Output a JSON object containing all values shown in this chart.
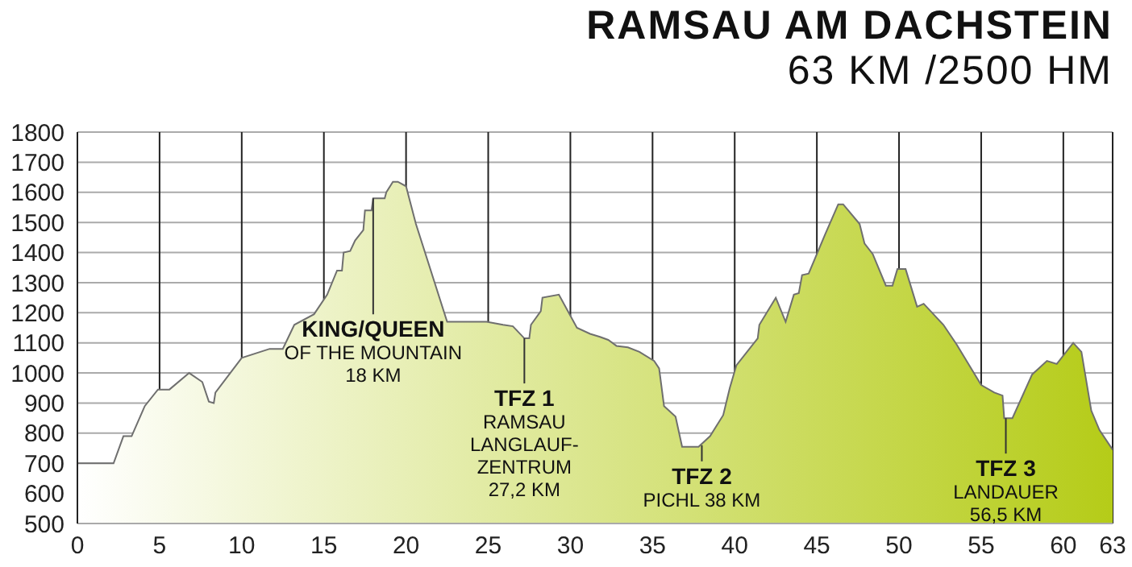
{
  "chart_data": {
    "type": "area",
    "title": "RAMSAU AM DACHSTEIN",
    "subtitle": "63 KM /2500 HM",
    "x": [
      0,
      2.2,
      2.8,
      3.3,
      4.1,
      4.9,
      5.6,
      6.8,
      7.6,
      8.0,
      8.3,
      8.4,
      10,
      11.7,
      12.5,
      13.2,
      14.4,
      15.2,
      15.8,
      16.1,
      16.2,
      16.6,
      16.9,
      17.4,
      17.5,
      17.9,
      18.0,
      18.7,
      18.8,
      19.2,
      19.5,
      20,
      20.6,
      22.5,
      24.9,
      25.9,
      26.5,
      27.2,
      27.5,
      27.6,
      28.2,
      28.3,
      29.3,
      30.4,
      31.2,
      31.8,
      32.3,
      32.8,
      33.5,
      34.2,
      35.1,
      35.4,
      35.7,
      36.4,
      36.8,
      37.8,
      38.5,
      39.3,
      39.7,
      40.1,
      41.4,
      41.5,
      42.5,
      43.1,
      43.6,
      43.9,
      44.1,
      44.5,
      45.5,
      46.3,
      46.6,
      47.6,
      47.9,
      48.4,
      49.2,
      49.6,
      49.9,
      50.4,
      51.1,
      51.5,
      52.7,
      53.5,
      55,
      55.8,
      56.3,
      56.4,
      56.9,
      58.1,
      58.5,
      59,
      59.6,
      60.6,
      61.1,
      61.7,
      62.2,
      63
    ],
    "series": [
      {
        "color": "#b5cc18",
        "values": [
          700,
          700,
          790,
          790,
          890,
          945,
          945,
          1000,
          970,
          905,
          900,
          935,
          1050,
          1080,
          1080,
          1160,
          1195,
          1260,
          1340,
          1340,
          1400,
          1405,
          1440,
          1475,
          1540,
          1540,
          1580,
          1580,
          1600,
          1635,
          1635,
          1620,
          1495,
          1170,
          1170,
          1160,
          1155,
          1115,
          1115,
          1160,
          1205,
          1250,
          1260,
          1150,
          1130,
          1120,
          1110,
          1090,
          1085,
          1070,
          1040,
          1015,
          890,
          855,
          755,
          755,
          790,
          860,
          950,
          1025,
          1115,
          1160,
          1250,
          1170,
          1260,
          1265,
          1325,
          1330,
          1460,
          1560,
          1560,
          1495,
          1430,
          1395,
          1290,
          1290,
          1345,
          1345,
          1220,
          1230,
          1160,
          1095,
          960,
          935,
          925,
          850,
          850,
          995,
          1015,
          1040,
          1030,
          1100,
          1070,
          875,
          810,
          745
        ]
      }
    ],
    "xlim": [
      0,
      63
    ],
    "xticks": [
      0,
      5,
      10,
      15,
      20,
      25,
      30,
      35,
      40,
      45,
      50,
      55,
      60,
      63
    ],
    "ylim": [
      500,
      1800
    ],
    "yticks": [
      500,
      600,
      700,
      800,
      900,
      1000,
      1100,
      1200,
      1300,
      1400,
      1500,
      1600,
      1700,
      1800
    ],
    "grid": true,
    "legend": false,
    "annotations": [
      {
        "text": "KING/QUEEN\nOF THE MOUNTAIN\n18 KM",
        "x": 18,
        "y": 1580
      },
      {
        "text": "TFZ 1\nRAMSAU\nLANGLAUF-\nZENTRUM\n27,2 KM",
        "x": 27.2,
        "y": 1115
      },
      {
        "text": "TFZ 2\nPICHL 38 KM",
        "x": 38,
        "y": 760
      },
      {
        "text": "TFZ 3\nLANDAUER\n56,5 KM",
        "x": 56.5,
        "y": 850
      }
    ]
  }
}
